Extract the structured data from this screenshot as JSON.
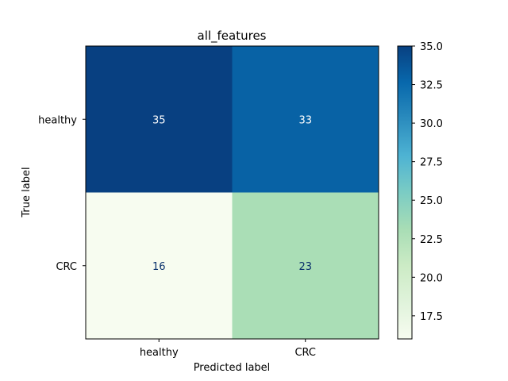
{
  "chart_data": {
    "type": "heatmap",
    "title": "all_features",
    "xlabel": "Predicted label",
    "ylabel": "True label",
    "x_categories": [
      "healthy",
      "CRC"
    ],
    "y_categories": [
      "healthy",
      "CRC"
    ],
    "values": [
      [
        35,
        33
      ],
      [
        16,
        23
      ]
    ],
    "colormap": "GnBu",
    "color_range": [
      16,
      35
    ],
    "colorbar_ticks": [
      "17.5",
      "20.0",
      "22.5",
      "25.0",
      "27.5",
      "30.0",
      "32.5",
      "35.0"
    ],
    "colors": {
      "light_text": "#ffffff",
      "dark_text": "#08306b"
    }
  }
}
